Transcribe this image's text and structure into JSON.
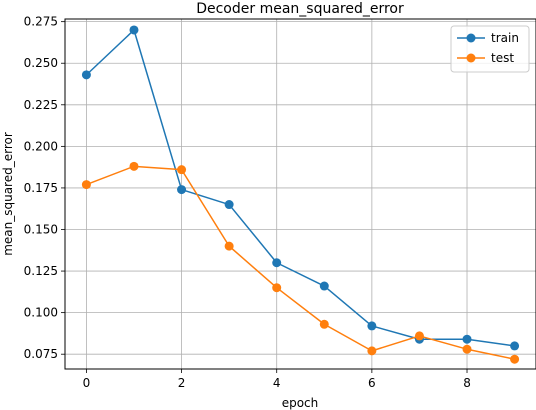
{
  "chart_data": {
    "type": "line",
    "title": "Decoder mean_squared_error",
    "xlabel": "epoch",
    "ylabel": "mean_squared_error",
    "x": [
      0,
      1,
      2,
      3,
      4,
      5,
      6,
      7,
      8,
      9
    ],
    "xlim": [
      -0.45,
      9.45
    ],
    "ylim": [
      0.0661,
      0.2766
    ],
    "xticks": [
      0,
      2,
      4,
      6,
      8
    ],
    "yticks": [
      0.075,
      0.1,
      0.125,
      0.15,
      0.175,
      0.2,
      0.225,
      0.25,
      0.275
    ],
    "ytick_labels": [
      "0.075",
      "0.100",
      "0.125",
      "0.150",
      "0.175",
      "0.200",
      "0.225",
      "0.250",
      "0.275"
    ],
    "grid": true,
    "legend_position": "top-right",
    "series": [
      {
        "name": "train",
        "color": "#1f77b4",
        "values": [
          0.243,
          0.27,
          0.174,
          0.165,
          0.13,
          0.116,
          0.092,
          0.084,
          0.084,
          0.08
        ]
      },
      {
        "name": "test",
        "color": "#ff7f0e",
        "values": [
          0.177,
          0.188,
          0.186,
          0.14,
          0.115,
          0.093,
          0.077,
          0.086,
          0.078,
          0.072
        ]
      }
    ]
  }
}
